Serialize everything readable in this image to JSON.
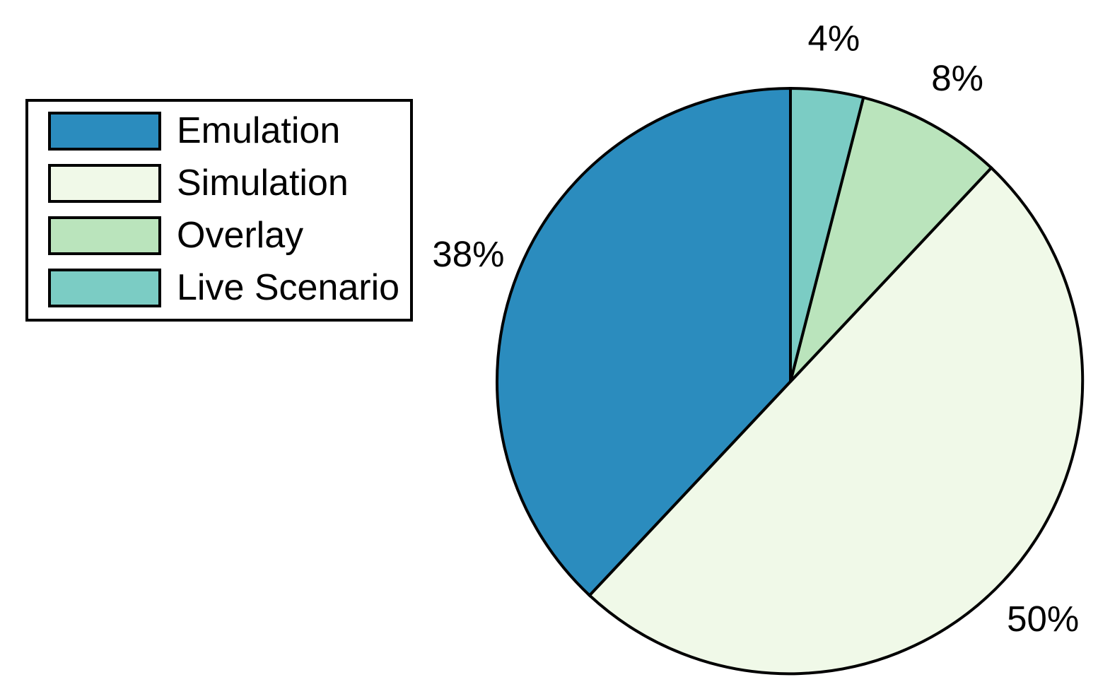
{
  "chart_data": {
    "type": "pie",
    "title": "",
    "series": [
      {
        "name": "Emulation",
        "value_pct": 38,
        "label": "38%",
        "color": "#2b8cbe"
      },
      {
        "name": "Simulation",
        "value_pct": 50,
        "label": "50%",
        "color": "#f0f9e8"
      },
      {
        "name": "Overlay",
        "value_pct": 8,
        "label": "8%",
        "color": "#bae4bc"
      },
      {
        "name": "Live Scenario",
        "value_pct": 4,
        "label": "4%",
        "color": "#7bccc4"
      }
    ],
    "layout": {
      "start_angle": "12-oclock",
      "direction": "counterclockwise",
      "legend_position": "upper-left",
      "labels_outside": true,
      "stroke_color": "#000000",
      "background_color": "#ffffff"
    }
  }
}
